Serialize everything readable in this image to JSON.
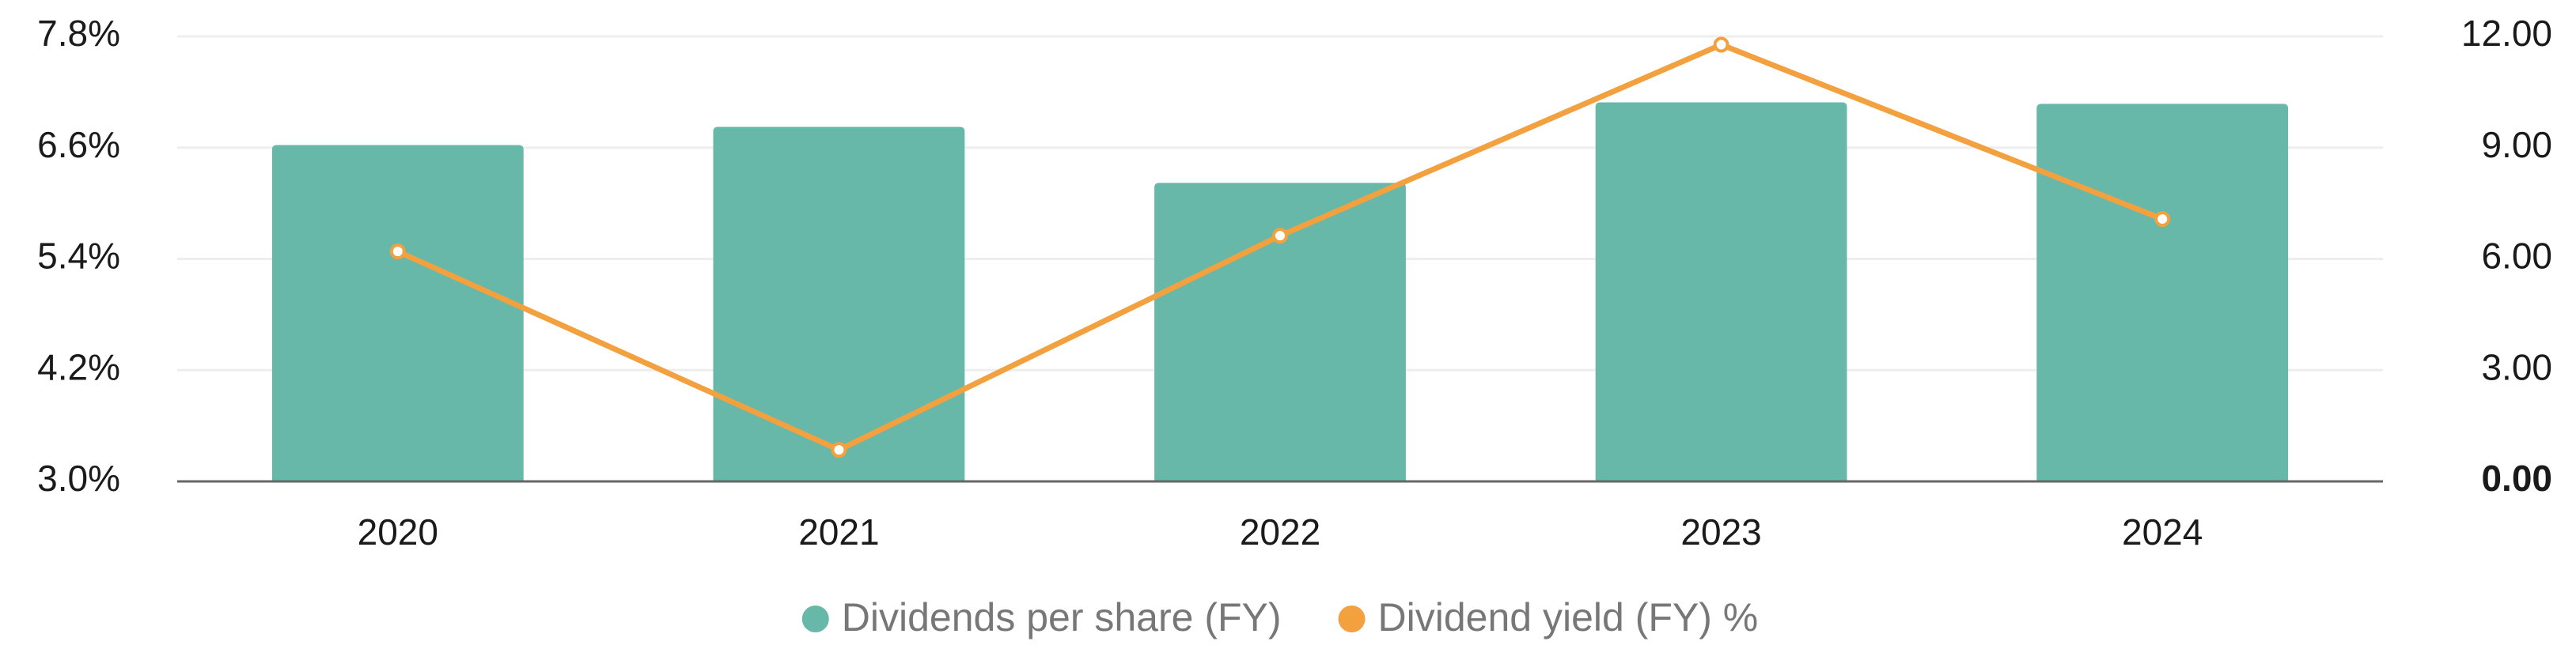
{
  "chart_data": {
    "type": "bar",
    "categories": [
      "2020",
      "2021",
      "2022",
      "2023",
      "2024"
    ],
    "series": [
      {
        "name": "Dividends per share (FY)",
        "type": "bar",
        "axis": "y2",
        "color": "#67b8a9",
        "values": [
          9.07,
          9.56,
          8.05,
          10.22,
          10.18
        ]
      },
      {
        "name": "Dividend yield (FY) %",
        "type": "line",
        "color": "#f3a03f",
        "values": [
          5.48,
          3.34,
          5.65,
          7.71,
          5.83
        ]
      }
    ],
    "ylim": [
      3.0,
      7.8
    ],
    "yticks": [
      {
        "value": 3.0,
        "label": "3.0%"
      },
      {
        "value": 4.2,
        "label": "4.2%"
      },
      {
        "value": 5.4,
        "label": "5.4%"
      },
      {
        "value": 6.6,
        "label": "6.6%"
      },
      {
        "value": 7.8,
        "label": "7.8%"
      }
    ],
    "y2lim": [
      0,
      12
    ],
    "y2ticks": [
      {
        "value": 0,
        "label": "0.00"
      },
      {
        "value": 3,
        "label": "3.00"
      },
      {
        "value": 6,
        "label": "6.00"
      },
      {
        "value": 9,
        "label": "9.00"
      },
      {
        "value": 12,
        "label": "12.00"
      }
    ],
    "grid": true,
    "legend": "bottom"
  }
}
